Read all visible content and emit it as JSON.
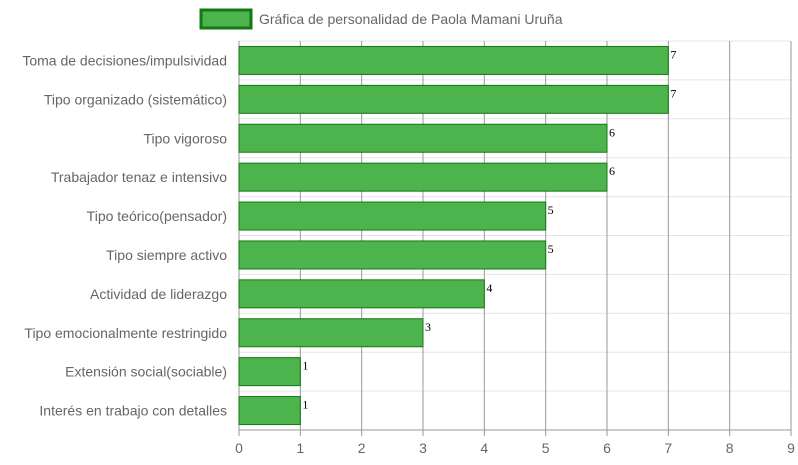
{
  "chart_data": {
    "type": "bar",
    "orientation": "horizontal",
    "title": "",
    "xlabel": "",
    "ylabel": "",
    "xlim": [
      0,
      9
    ],
    "x_ticks": [
      "0",
      "1",
      "2",
      "3",
      "4",
      "5",
      "6",
      "7",
      "8",
      "9"
    ],
    "grid": true,
    "legend_position": "top",
    "categories": [
      "Toma de decisiones/impulsividad",
      "Tipo organizado (sistemático)",
      "Tipo vigoroso",
      "Trabajador tenaz e intensivo",
      "Tipo teórico(pensador)",
      "Tipo siempre activo",
      "Actividad de liderazgo",
      "Tipo emocionalmente restringido",
      "Extensión social(sociable)",
      "Interés en trabajo con detalles"
    ],
    "series": [
      {
        "name": "Gráfica de personalidad de Paola Mamani Uruña",
        "values": [
          7,
          7,
          6,
          6,
          5,
          5,
          4,
          3,
          1,
          1
        ],
        "color": "#4db34d",
        "border_color": "#117a11"
      }
    ],
    "data_labels": [
      "7",
      "7",
      "6",
      "6",
      "5",
      "5",
      "4",
      "3",
      "1",
      "1"
    ]
  }
}
